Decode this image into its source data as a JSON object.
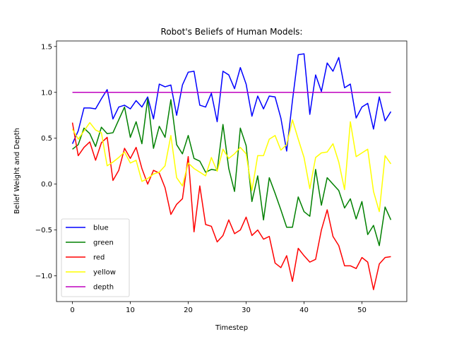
{
  "chart_data": {
    "type": "line",
    "title": "Robot's Beliefs of Human Models:",
    "xlabel": "Timestep",
    "ylabel": "Belief Weight and Depth",
    "xlim": [
      -2.75,
      57.75
    ],
    "ylim": [
      -1.28,
      1.56
    ],
    "xticks": [
      0,
      10,
      20,
      30,
      40,
      50
    ],
    "yticks": [
      -1.0,
      -0.5,
      0.0,
      0.5,
      1.0,
      1.5
    ],
    "ytick_labels": [
      "−1.0",
      "−0.5",
      "0.0",
      "0.5",
      "1.0",
      "1.5"
    ],
    "grid": false,
    "legend_position": "lower-left",
    "x": [
      0,
      1,
      2,
      3,
      4,
      5,
      6,
      7,
      8,
      9,
      10,
      11,
      12,
      13,
      14,
      15,
      16,
      17,
      18,
      19,
      20,
      21,
      22,
      23,
      24,
      25,
      26,
      27,
      28,
      29,
      30,
      31,
      32,
      33,
      34,
      35,
      36,
      37,
      38,
      39,
      40,
      41,
      42,
      43,
      44,
      45,
      46,
      47,
      48,
      49,
      50,
      51,
      52,
      53,
      54,
      55
    ],
    "series": [
      {
        "name": "blue",
        "color": "#0000ff",
        "values": [
          0.44,
          0.58,
          0.83,
          0.83,
          0.82,
          0.93,
          1.03,
          0.71,
          0.84,
          0.86,
          0.82,
          0.91,
          0.84,
          0.95,
          0.71,
          1.09,
          1.06,
          1.08,
          0.75,
          1.08,
          1.22,
          1.23,
          0.86,
          0.84,
          0.99,
          0.68,
          1.23,
          1.19,
          1.04,
          1.27,
          1.09,
          0.74,
          0.96,
          0.82,
          0.96,
          0.95,
          0.72,
          0.36,
          0.91,
          1.41,
          1.42,
          0.76,
          1.19,
          1.01,
          1.32,
          1.23,
          1.38,
          1.05,
          1.09,
          0.72,
          0.84,
          0.88,
          0.6,
          0.95,
          0.69,
          0.79
        ]
      },
      {
        "name": "green",
        "color": "#008000",
        "values": [
          0.38,
          0.43,
          0.61,
          0.55,
          0.41,
          0.62,
          0.55,
          0.56,
          0.7,
          0.84,
          0.51,
          0.68,
          0.44,
          0.93,
          0.39,
          0.63,
          0.51,
          0.92,
          0.43,
          0.33,
          0.53,
          0.28,
          0.25,
          0.13,
          0.16,
          0.15,
          0.65,
          0.17,
          -0.08,
          0.61,
          0.42,
          -0.19,
          0.09,
          -0.39,
          0.07,
          -0.1,
          -0.28,
          -0.47,
          -0.47,
          -0.14,
          -0.3,
          -0.35,
          0.16,
          -0.23,
          0.07,
          0.0,
          -0.07,
          -0.26,
          -0.16,
          -0.38,
          -0.19,
          -0.55,
          -0.45,
          -0.67,
          -0.25,
          -0.39
        ]
      },
      {
        "name": "red",
        "color": "#ff0000",
        "values": [
          0.67,
          0.31,
          0.4,
          0.46,
          0.26,
          0.45,
          0.51,
          0.04,
          0.15,
          0.39,
          0.28,
          0.4,
          0.17,
          0.0,
          0.15,
          0.12,
          -0.04,
          -0.33,
          -0.22,
          -0.16,
          0.3,
          -0.52,
          -0.02,
          -0.44,
          -0.46,
          -0.63,
          -0.56,
          -0.39,
          -0.54,
          -0.5,
          -0.36,
          -0.56,
          -0.5,
          -0.6,
          -0.57,
          -0.86,
          -0.91,
          -0.78,
          -1.06,
          -0.7,
          -0.78,
          -0.85,
          -0.82,
          -0.5,
          -0.28,
          -0.57,
          -0.67,
          -0.89,
          -0.89,
          -0.92,
          -0.8,
          -0.85,
          -1.15,
          -0.87,
          -0.8,
          -0.79
        ]
      },
      {
        "name": "yellow",
        "color": "#ffff00",
        "values": [
          0.6,
          0.49,
          0.58,
          0.67,
          0.59,
          0.56,
          0.2,
          0.24,
          0.29,
          0.35,
          0.23,
          0.26,
          0.03,
          0.06,
          0.11,
          0.13,
          0.2,
          0.53,
          0.07,
          -0.02,
          0.23,
          0.17,
          0.13,
          0.09,
          0.29,
          0.14,
          0.38,
          0.28,
          0.33,
          0.4,
          0.33,
          -0.07,
          0.31,
          0.31,
          0.49,
          0.53,
          0.37,
          0.43,
          0.7,
          0.49,
          0.29,
          -0.05,
          0.29,
          0.34,
          0.35,
          0.44,
          0.24,
          -0.06,
          0.68,
          0.3,
          0.34,
          0.38,
          -0.08,
          -0.3,
          0.31,
          0.22
        ]
      },
      {
        "name": "depth",
        "color": "#bf00bf",
        "values": [
          1.0,
          1.0,
          1.0,
          1.0,
          1.0,
          1.0,
          1.0,
          1.0,
          1.0,
          1.0,
          1.0,
          1.0,
          1.0,
          1.0,
          1.0,
          1.0,
          1.0,
          1.0,
          1.0,
          1.0,
          1.0,
          1.0,
          1.0,
          1.0,
          1.0,
          1.0,
          1.0,
          1.0,
          1.0,
          1.0,
          1.0,
          1.0,
          1.0,
          1.0,
          1.0,
          1.0,
          1.0,
          1.0,
          1.0,
          1.0,
          1.0,
          1.0,
          1.0,
          1.0,
          1.0,
          1.0,
          1.0,
          1.0,
          1.0,
          1.0,
          1.0,
          1.0,
          1.0,
          1.0,
          1.0,
          1.0
        ]
      }
    ]
  }
}
